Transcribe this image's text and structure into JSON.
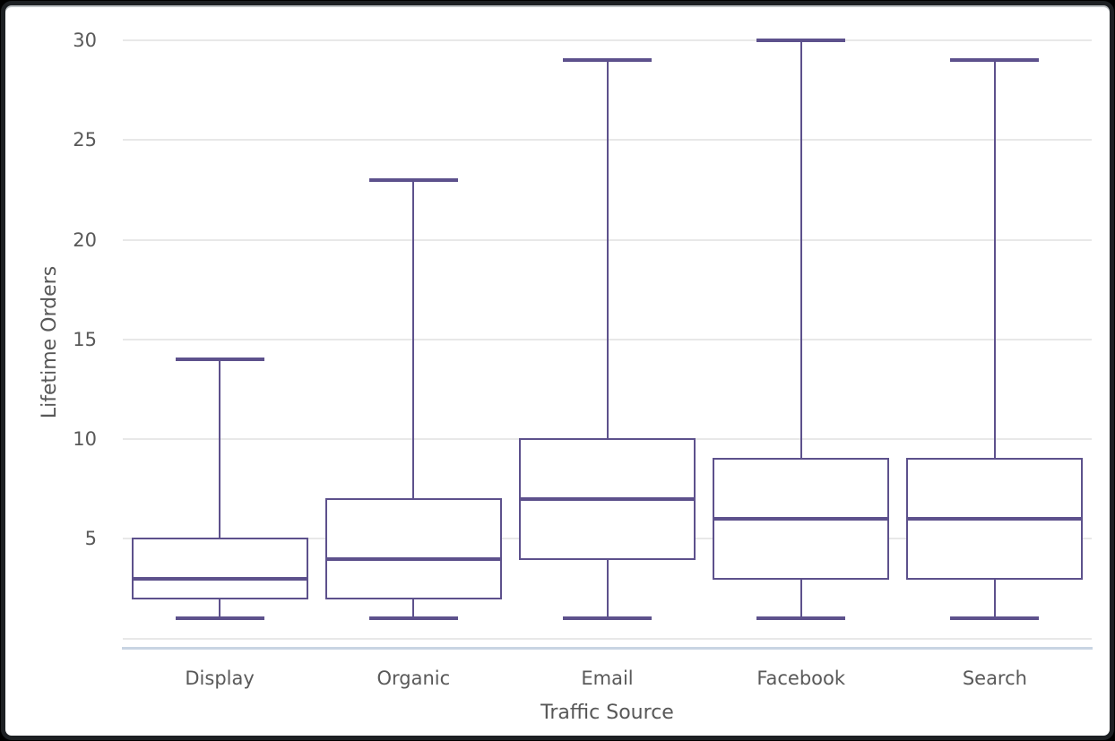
{
  "chart_data": {
    "type": "box",
    "title": "",
    "xlabel": "Traffic Source",
    "ylabel": "Lifetime Orders",
    "categories": [
      "Display",
      "Organic",
      "Email",
      "Facebook",
      "Search"
    ],
    "series": [
      {
        "name": "Display",
        "min": 1,
        "q1": 2,
        "median": 3,
        "q3": 5,
        "max": 14
      },
      {
        "name": "Organic",
        "min": 1,
        "q1": 2,
        "median": 4,
        "q3": 7,
        "max": 23
      },
      {
        "name": "Email",
        "min": 1,
        "q1": 4,
        "median": 7,
        "q3": 10,
        "max": 29
      },
      {
        "name": "Facebook",
        "min": 1,
        "q1": 3,
        "median": 6,
        "q3": 9,
        "max": 30
      },
      {
        "name": "Search",
        "min": 1,
        "q1": 3,
        "median": 6,
        "q3": 9,
        "max": 29
      }
    ],
    "yticks": [
      5,
      10,
      15,
      20,
      25,
      30
    ],
    "gridline_values": [
      0,
      5,
      10,
      15,
      20,
      25,
      30
    ],
    "ylim": [
      0,
      31
    ],
    "grid": true,
    "legend": "none",
    "colors": {
      "box_stroke": "#5d518c",
      "gridline": "#e8e8e8",
      "axis_line": "#c8d4e3",
      "tick_text": "#595959",
      "title_text": "#575757",
      "plot_bg": "#ffffff"
    }
  }
}
